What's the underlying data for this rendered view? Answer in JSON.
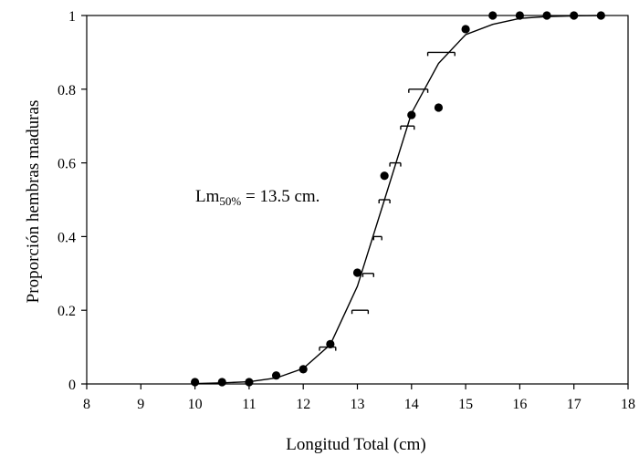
{
  "chart_data": {
    "type": "scatter",
    "title": "",
    "xlabel": "Longitud Total (cm)",
    "ylabel": "Proporción hembras maduras",
    "xlim": [
      8,
      18
    ],
    "ylim": [
      0,
      1
    ],
    "xticks": [
      "8",
      "9",
      "10",
      "11",
      "12",
      "13",
      "14",
      "15",
      "16",
      "17",
      "18"
    ],
    "yticks": [
      "0",
      "0.2",
      "0.4",
      "0.6",
      "0.8",
      "1"
    ],
    "grid": false,
    "annotation": {
      "prefix": "Lm",
      "subscript": "50%",
      "suffix": " = 13.5 cm."
    },
    "series": [
      {
        "kind": "observed",
        "x": [
          10,
          10.5,
          11,
          11.5,
          12,
          12.5,
          13,
          13.5,
          14,
          14.5,
          15,
          15.5,
          16,
          16.5,
          17,
          17.5
        ],
        "y": [
          0.005,
          0.005,
          0.005,
          0.023,
          0.04,
          0.108,
          0.302,
          0.565,
          0.73,
          0.75,
          0.963,
          1.0,
          1.0,
          1.0,
          1.0,
          1.0
        ]
      },
      {
        "kind": "fitted",
        "x": [
          10,
          10.5,
          11,
          11.5,
          12,
          12.5,
          13,
          13.5,
          14,
          14.5,
          15,
          15.5,
          16,
          16.5,
          17,
          17.5
        ],
        "y": [
          0.001,
          0.003,
          0.006,
          0.016,
          0.042,
          0.107,
          0.265,
          0.5,
          0.735,
          0.87,
          0.948,
          0.976,
          0.992,
          0.997,
          0.999,
          1.0
        ]
      },
      {
        "kind": "interval",
        "y": [
          0.1,
          0.2,
          0.3,
          0.4,
          0.5,
          0.6,
          0.7,
          0.8,
          0.9
        ],
        "x_low": [
          12.3,
          12.9,
          13.1,
          13.3,
          13.4,
          13.6,
          13.8,
          13.95,
          14.3
        ],
        "x_high": [
          12.6,
          13.2,
          13.3,
          13.45,
          13.6,
          13.8,
          14.05,
          14.3,
          14.8
        ]
      }
    ]
  }
}
